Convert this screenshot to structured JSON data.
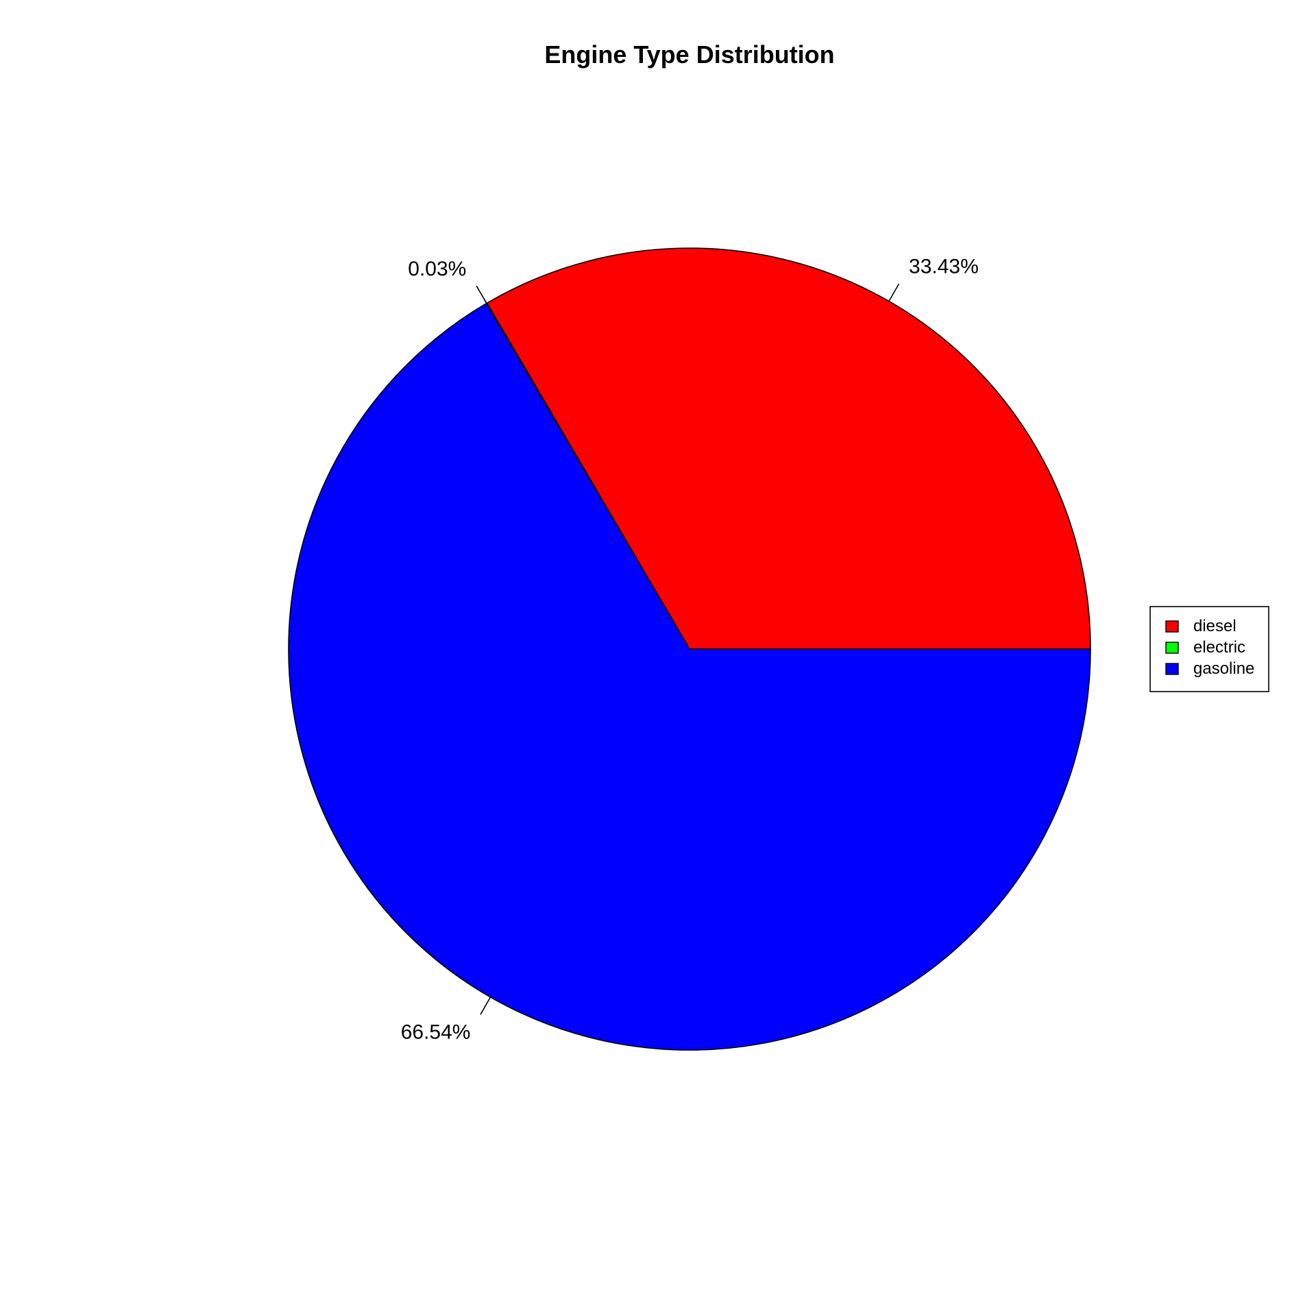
{
  "chart_data": {
    "type": "pie",
    "title": "Engine Type Distribution",
    "slices": [
      {
        "name": "diesel",
        "value": 33.43,
        "label": "33.43%",
        "color": "#FF0000"
      },
      {
        "name": "electric",
        "value": 0.03,
        "label": "0.03%",
        "color": "#00FF00"
      },
      {
        "name": "gasoline",
        "value": 66.54,
        "label": "66.54%",
        "color": "#0000FF"
      }
    ],
    "start_angle_deg": 0,
    "direction": "counterclockwise",
    "legend": {
      "position": "right",
      "entries": [
        "diesel",
        "electric",
        "gasoline"
      ]
    }
  }
}
